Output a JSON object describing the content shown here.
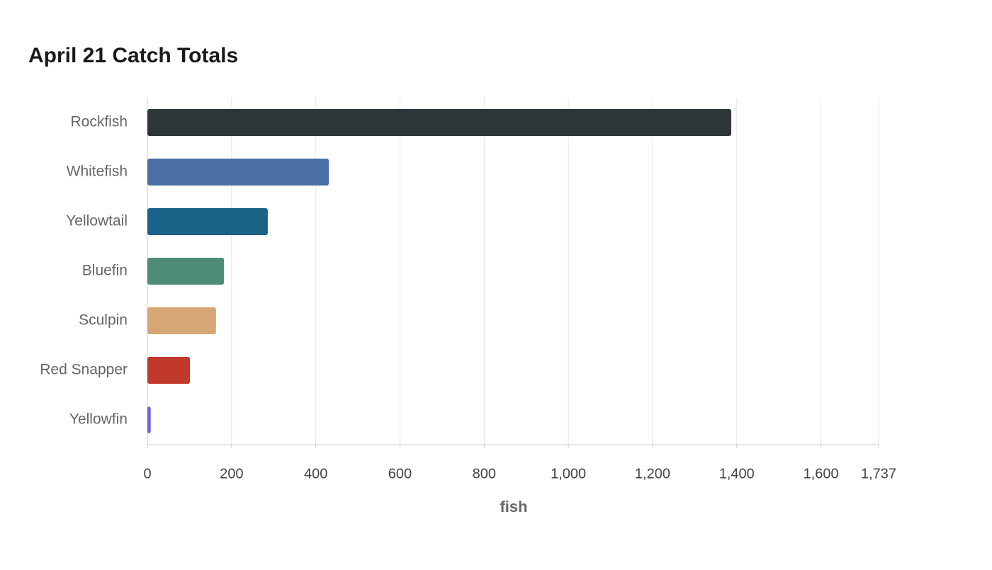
{
  "chart_data": {
    "type": "bar",
    "orientation": "horizontal",
    "title": "April 21 Catch Totals",
    "x_label": "fish",
    "categories": [
      "Rockfish",
      "Whitefish",
      "Yellowtail",
      "Bluefin",
      "Sculpin",
      "Red Snapper",
      "Yellowfin"
    ],
    "values": [
      1387,
      431,
      286,
      182,
      163,
      101,
      8
    ],
    "colors": [
      "#2e3538",
      "#4a6fa5",
      "#1b6289",
      "#4e8c7a",
      "#d6a775",
      "#c0392b",
      "#7163d8"
    ],
    "xlim": [
      0,
      1737
    ],
    "xticks": [
      0,
      200,
      400,
      600,
      800,
      {
        "value": 1000,
        "label": "1,000"
      },
      {
        "value": 1200,
        "label": "1,200"
      },
      {
        "value": 1400,
        "label": "1,400"
      },
      {
        "value": 1600,
        "label": "1,600"
      },
      {
        "value": 1737,
        "label": "1,737"
      }
    ],
    "grid": true
  }
}
